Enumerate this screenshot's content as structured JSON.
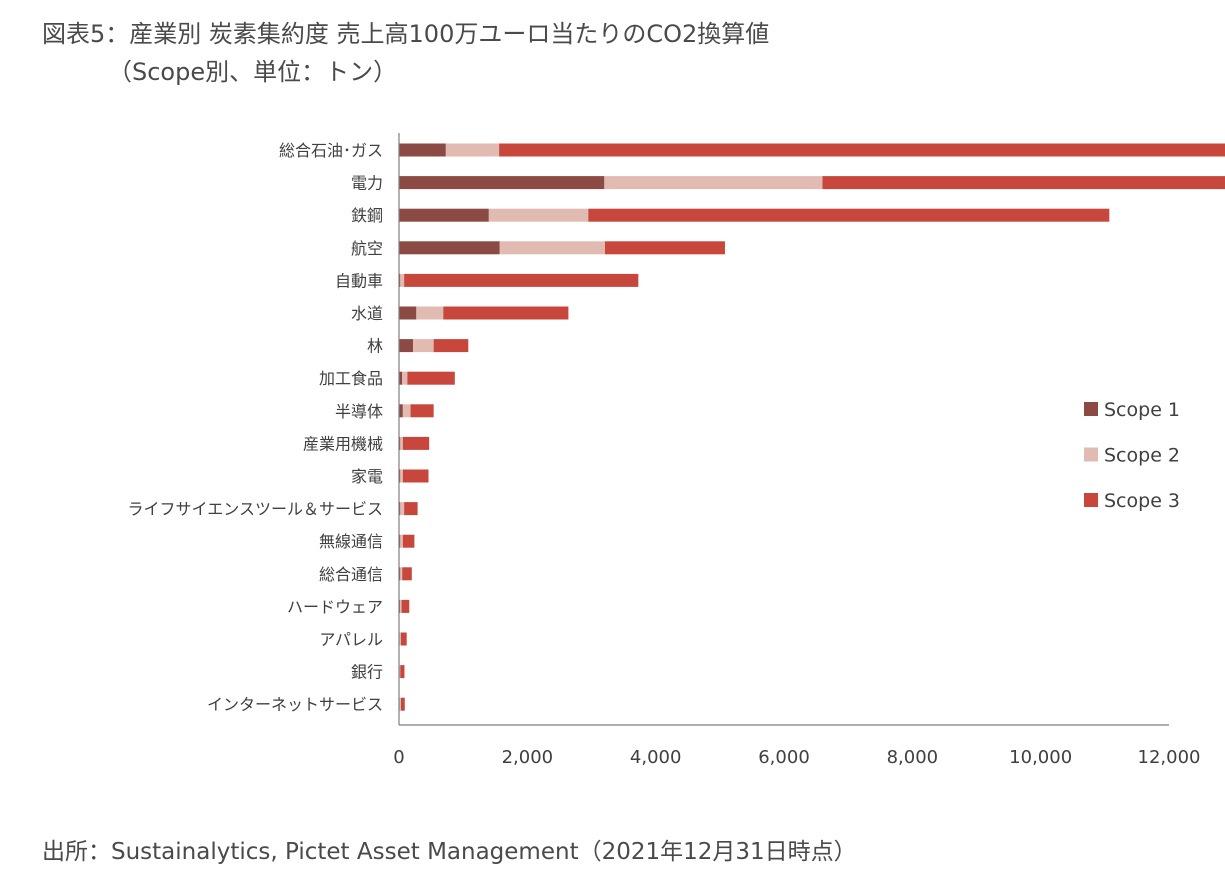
{
  "title": {
    "line1": "図表5：産業別 炭素集約度 売上高100万ユーロ当たりのCO2換算値",
    "line2": "（Scope別、単位：トン）"
  },
  "source": "出所：Sustainalytics, Pictet Asset Management（2021年12月31日時点）",
  "chart_data": {
    "type": "bar",
    "orientation": "horizontal",
    "stacked": true,
    "categories": [
      "総合石油･ガス",
      "電力",
      "鉄鋼",
      "航空",
      "自動車",
      "水道",
      "林",
      "加工食品",
      "半導体",
      "産業用機械",
      "家電",
      "ライフサイエンスツール＆サービス",
      "無線通信",
      "総合通信",
      "ハードウェア",
      "アパレル",
      "銀行",
      "インターネットサービス"
    ],
    "series": [
      {
        "name": "Scope 1",
        "color": "#8b4a44",
        "values": [
          730,
          3200,
          1400,
          1570,
          20,
          270,
          220,
          50,
          60,
          20,
          20,
          20,
          20,
          20,
          15,
          10,
          5,
          10
        ]
      },
      {
        "name": "Scope 2",
        "color": "#e1bbb1",
        "values": [
          830,
          3400,
          1550,
          1640,
          60,
          420,
          320,
          80,
          120,
          40,
          40,
          60,
          40,
          30,
          25,
          20,
          15,
          20
        ]
      },
      {
        "name": "Scope 3",
        "color": "#c8473d",
        "values": [
          11320,
          6360,
          8120,
          1870,
          3650,
          1950,
          540,
          740,
          360,
          410,
          400,
          210,
          180,
          150,
          120,
          90,
          65,
          60
        ]
      }
    ],
    "xaxis": {
      "min": 0,
      "max": 12000,
      "ticks": [
        0,
        2000,
        4000,
        6000,
        8000,
        10000,
        12000
      ],
      "tick_labels": [
        "0",
        "2,000",
        "4,000",
        "6,000",
        "8,000",
        "10,000",
        "12,000"
      ]
    },
    "grid": false,
    "legend": {
      "position": "right",
      "entries": [
        "Scope 1",
        "Scope 2",
        "Scope 3"
      ]
    }
  }
}
